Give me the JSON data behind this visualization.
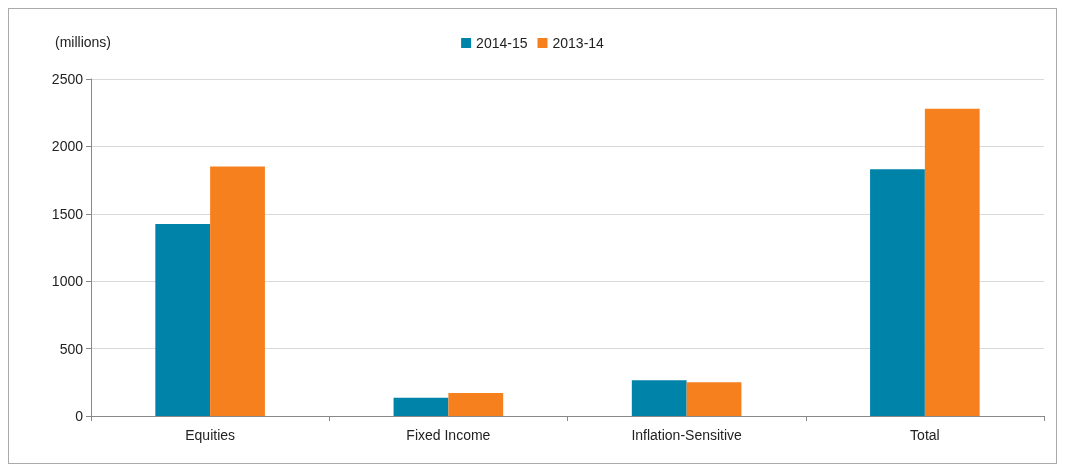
{
  "chart_data": {
    "type": "bar",
    "ylabel": "(millions)",
    "categories": [
      "Equities",
      "Fixed Income",
      "Inflation-Sensitive",
      "Total"
    ],
    "series": [
      {
        "name": "2014-15",
        "color": "#0083a9",
        "values": [
          1425,
          135,
          265,
          1830
        ]
      },
      {
        "name": "2013-14",
        "color": "#f7801e",
        "values": [
          1850,
          170,
          250,
          2280
        ]
      }
    ],
    "ylim": [
      0,
      2500
    ],
    "yticks": [
      0,
      500,
      1000,
      1500,
      2000,
      2500
    ],
    "grid": "y",
    "legend": "top"
  }
}
